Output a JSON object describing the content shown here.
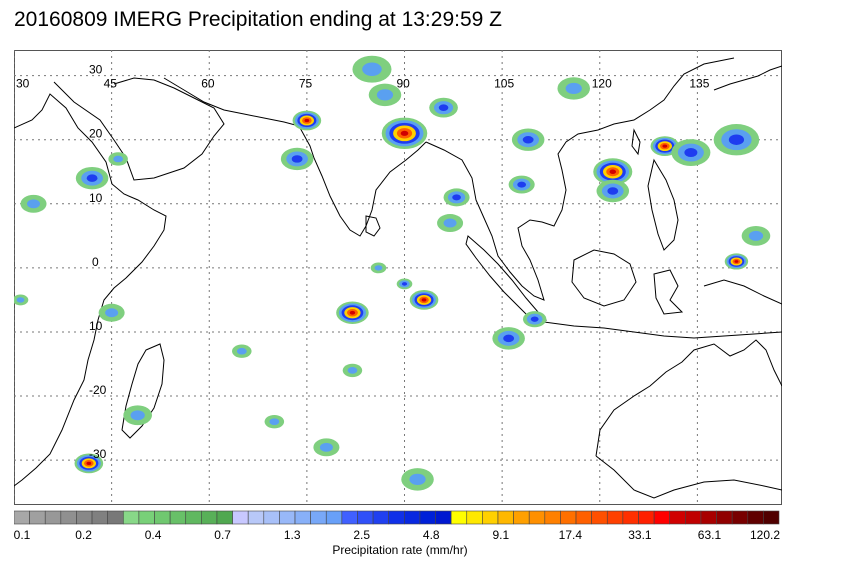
{
  "title": "20160809 IMERG Precipitation ending at 13:29:59 Z",
  "map": {
    "lon_labels": [
      "30",
      "45",
      "60",
      "75",
      "90",
      "105",
      "120",
      "135"
    ],
    "lat_labels": [
      "30",
      "20",
      "10",
      "0",
      "10",
      "-20",
      "-30"
    ],
    "extent": {
      "lon_min": 30,
      "lon_max": 148,
      "lat_min": -37,
      "lat_max": 34
    },
    "background_color": "#ffffff",
    "coastline_color": "#000000",
    "gridline_style": "dotted"
  },
  "colorbar": {
    "title": "Precipitation rate (mm/hr)",
    "tick_labels": [
      "0.1",
      "0.2",
      "0.4",
      "0.7",
      "1.3",
      "2.5",
      "4.8",
      "9.1",
      "17.4",
      "33.1",
      "63.1",
      "120.2"
    ],
    "colors": [
      "#a8a8a8",
      "#a0a0a0",
      "#989898",
      "#909090",
      "#888888",
      "#808080",
      "#787878",
      "#88d888",
      "#78d078",
      "#70c870",
      "#68c068",
      "#60b860",
      "#58b058",
      "#50a850",
      "#c8c8ff",
      "#b8c8f8",
      "#a8c0f8",
      "#98b8f8",
      "#88b0f8",
      "#78a8f8",
      "#68a0f8",
      "#4060ff",
      "#3050f8",
      "#2040f0",
      "#1030e8",
      "#0828e0",
      "#0020d8",
      "#0018d0",
      "#ffff00",
      "#ffe800",
      "#ffd000",
      "#ffb800",
      "#ffa000",
      "#ff9000",
      "#ff8000",
      "#ff7000",
      "#ff6000",
      "#ff5000",
      "#ff4000",
      "#ff3000",
      "#ff2000",
      "#ff0000",
      "#d00000",
      "#c00000",
      "#a80000",
      "#900000",
      "#780000",
      "#600000",
      "#500000"
    ]
  },
  "precip_cells": [
    {
      "lon": 75,
      "lat": 23,
      "r": 2.2,
      "level": "heavy"
    },
    {
      "lon": 73.5,
      "lat": 17,
      "r": 2.5,
      "level": "moderate"
    },
    {
      "lon": 90,
      "lat": 21,
      "r": 3.5,
      "level": "heavy"
    },
    {
      "lon": 96,
      "lat": 25,
      "r": 2.2,
      "level": "moderate"
    },
    {
      "lon": 87,
      "lat": 27,
      "r": 2.5,
      "level": "light"
    },
    {
      "lon": 109,
      "lat": 20,
      "r": 2.5,
      "level": "moderate"
    },
    {
      "lon": 122,
      "lat": 15,
      "r": 3,
      "level": "heavy"
    },
    {
      "lon": 130,
      "lat": 19,
      "r": 2.2,
      "level": "heavy"
    },
    {
      "lon": 134,
      "lat": 18,
      "r": 3,
      "level": "moderate"
    },
    {
      "lon": 141,
      "lat": 20,
      "r": 3.5,
      "level": "moderate"
    },
    {
      "lon": 122,
      "lat": 12,
      "r": 2.5,
      "level": "moderate"
    },
    {
      "lon": 98,
      "lat": 11,
      "r": 2,
      "level": "moderate"
    },
    {
      "lon": 108,
      "lat": 13,
      "r": 2,
      "level": "moderate"
    },
    {
      "lon": 97,
      "lat": 7,
      "r": 2,
      "level": "light"
    },
    {
      "lon": 42,
      "lat": 14,
      "r": 2.5,
      "level": "moderate"
    },
    {
      "lon": 46,
      "lat": 17,
      "r": 1.5,
      "level": "light"
    },
    {
      "lon": 33,
      "lat": 10,
      "r": 2,
      "level": "light"
    },
    {
      "lon": 93,
      "lat": -5,
      "r": 2.2,
      "level": "heavy"
    },
    {
      "lon": 82,
      "lat": -7,
      "r": 2.5,
      "level": "heavy"
    },
    {
      "lon": 90,
      "lat": -2.5,
      "r": 1.2,
      "level": "moderate"
    },
    {
      "lon": 86,
      "lat": 0,
      "r": 1.2,
      "level": "light"
    },
    {
      "lon": 110,
      "lat": -8,
      "r": 1.8,
      "level": "moderate"
    },
    {
      "lon": 106,
      "lat": -11,
      "r": 2.5,
      "level": "moderate"
    },
    {
      "lon": 141,
      "lat": 1,
      "r": 1.8,
      "level": "heavy"
    },
    {
      "lon": 144,
      "lat": 5,
      "r": 2.2,
      "level": "light"
    },
    {
      "lon": 45,
      "lat": -7,
      "r": 2,
      "level": "light"
    },
    {
      "lon": 49,
      "lat": -23,
      "r": 2.2,
      "level": "light"
    },
    {
      "lon": 41.5,
      "lat": -30.5,
      "r": 2.2,
      "level": "heavy"
    },
    {
      "lon": 70,
      "lat": -24,
      "r": 1.5,
      "level": "light"
    },
    {
      "lon": 78,
      "lat": -28,
      "r": 2,
      "level": "light"
    },
    {
      "lon": 92,
      "lat": -33,
      "r": 2.5,
      "level": "light"
    },
    {
      "lon": 82,
      "lat": -16,
      "r": 1.5,
      "level": "light"
    },
    {
      "lon": 65,
      "lat": -13,
      "r": 1.5,
      "level": "light"
    },
    {
      "lon": 31,
      "lat": -5,
      "r": 1.2,
      "level": "light"
    },
    {
      "lon": 85,
      "lat": 31,
      "r": 3,
      "level": "light"
    },
    {
      "lon": 116,
      "lat": 28,
      "r": 2.5,
      "level": "light"
    }
  ]
}
